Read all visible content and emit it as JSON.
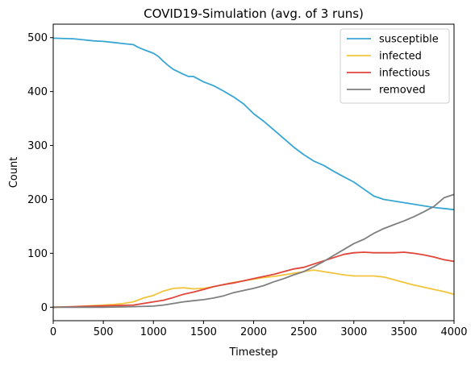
{
  "chart_data": {
    "type": "line",
    "title": "COVID19-Simulation (avg. of 3 runs)",
    "xlabel": "Timestep",
    "ylabel": "Count",
    "xlim": [
      0,
      4000
    ],
    "ylim": [
      -25,
      525
    ],
    "xticks": [
      0,
      500,
      1000,
      1500,
      2000,
      2500,
      3000,
      3500,
      4000
    ],
    "yticks": [
      0,
      100,
      200,
      300,
      400,
      500
    ],
    "grid": false,
    "legend_position": "top-right",
    "series": [
      {
        "name": "susceptible",
        "color": "#38a6d4",
        "x": [
          0,
          200,
          300,
          400,
          500,
          600,
          700,
          800,
          850,
          900,
          1000,
          1050,
          1100,
          1150,
          1200,
          1300,
          1350,
          1400,
          1500,
          1600,
          1700,
          1800,
          1900,
          2000,
          2100,
          2200,
          2300,
          2400,
          2500,
          2600,
          2700,
          2800,
          2900,
          3000,
          3100,
          3200,
          3300,
          3400,
          3500,
          3600,
          3700,
          3800,
          3900,
          4000
        ],
        "y": [
          499,
          498,
          496,
          494,
          493,
          491,
          489,
          487,
          482,
          478,
          471,
          465,
          456,
          448,
          441,
          432,
          428,
          428,
          418,
          411,
          401,
          390,
          377,
          359,
          345,
          329,
          313,
          297,
          283,
          271,
          263,
          252,
          242,
          232,
          219,
          206,
          200,
          197,
          194,
          191,
          188,
          185,
          183,
          181
        ]
      },
      {
        "name": "infected",
        "color": "#f2c43c",
        "x": [
          0,
          200,
          400,
          600,
          700,
          800,
          900,
          1000,
          1100,
          1200,
          1300,
          1400,
          1500,
          1600,
          1700,
          1800,
          1900,
          2000,
          2100,
          2200,
          2300,
          2400,
          2500,
          2600,
          2700,
          2800,
          2900,
          3000,
          3100,
          3200,
          3300,
          3400,
          3500,
          3600,
          3700,
          3800,
          3900,
          4000
        ],
        "y": [
          0,
          1,
          3,
          5,
          7,
          10,
          17,
          22,
          30,
          35,
          36,
          34,
          35,
          38,
          42,
          46,
          49,
          52,
          55,
          57,
          60,
          63,
          66,
          69,
          66,
          63,
          60,
          58,
          58,
          58,
          56,
          51,
          46,
          41,
          37,
          33,
          29,
          24
        ]
      },
      {
        "name": "infectious",
        "color": "#e0453a",
        "x": [
          0,
          200,
          400,
          600,
          800,
          900,
          1000,
          1100,
          1200,
          1300,
          1400,
          1500,
          1600,
          1700,
          1800,
          1900,
          2000,
          2100,
          2200,
          2300,
          2400,
          2500,
          2600,
          2700,
          2800,
          2900,
          3000,
          3100,
          3200,
          3300,
          3400,
          3500,
          3600,
          3700,
          3800,
          3900,
          4000
        ],
        "y": [
          0,
          1,
          2,
          3,
          4,
          7,
          10,
          13,
          18,
          24,
          28,
          33,
          38,
          42,
          45,
          49,
          53,
          57,
          61,
          66,
          71,
          74,
          80,
          86,
          92,
          98,
          101,
          102,
          101,
          101,
          101,
          102,
          100,
          97,
          93,
          88,
          85
        ]
      },
      {
        "name": "removed",
        "color": "#7f7f7f",
        "x": [
          0,
          500,
          800,
          1000,
          1100,
          1200,
          1300,
          1400,
          1500,
          1600,
          1700,
          1800,
          1900,
          2000,
          2100,
          2200,
          2300,
          2400,
          2500,
          2600,
          2700,
          2800,
          2900,
          3000,
          3100,
          3200,
          3300,
          3400,
          3500,
          3600,
          3700,
          3800,
          3850,
          3900,
          4000
        ],
        "y": [
          0,
          0,
          1,
          2,
          4,
          7,
          10,
          12,
          14,
          17,
          21,
          27,
          31,
          35,
          40,
          47,
          53,
          60,
          66,
          75,
          85,
          96,
          107,
          118,
          126,
          137,
          146,
          153,
          160,
          168,
          177,
          187,
          195,
          203,
          209
        ]
      }
    ]
  }
}
